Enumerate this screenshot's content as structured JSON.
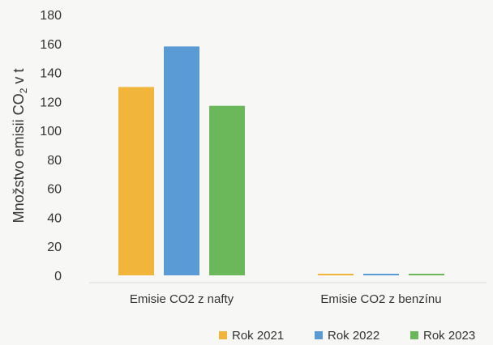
{
  "chart_data": {
    "type": "bar",
    "title": "",
    "xlabel": "",
    "ylabel": "Množstvo emisii CO₂ v t",
    "ylabel_parts": {
      "main": "Množstvo emisii CO",
      "sub": "2",
      "tail": " v t"
    },
    "categories": [
      "Emisie CO2 z nafty",
      "Emisie CO2 z benzínu"
    ],
    "series": [
      {
        "name": "Rok 2021",
        "color": "#f0b53a",
        "values": [
          130,
          1
        ]
      },
      {
        "name": "Rok 2022",
        "color": "#5b9bd5",
        "values": [
          158,
          1
        ]
      },
      {
        "name": "Rok 2023",
        "color": "#6ab85a",
        "values": [
          117,
          1
        ]
      }
    ],
    "ylim": [
      0,
      180
    ],
    "yticks": [
      0,
      20,
      40,
      60,
      80,
      100,
      120,
      140,
      160,
      180
    ],
    "grid": false,
    "legend_position": "bottom-right"
  }
}
